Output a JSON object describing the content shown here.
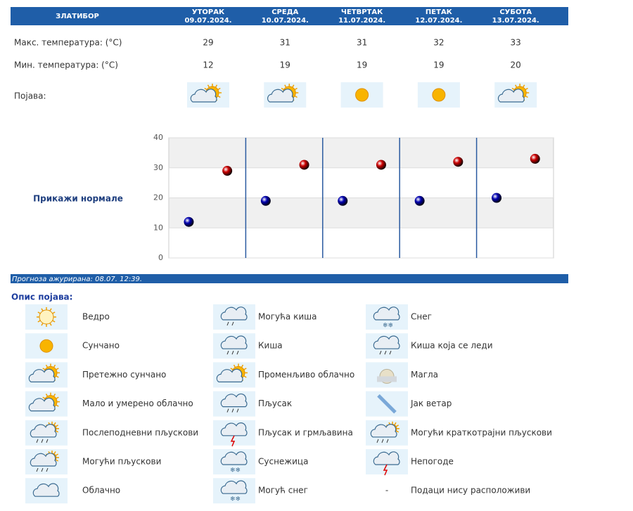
{
  "header": {
    "location": "ЗЛАТИБОР",
    "days": [
      {
        "name": "УТОРАК",
        "date": "09.07.2024."
      },
      {
        "name": "СРЕДА",
        "date": "10.07.2024."
      },
      {
        "name": "ЧЕТВРТАК",
        "date": "11.07.2024."
      },
      {
        "name": "ПЕТАК",
        "date": "12.07.2024."
      },
      {
        "name": "СУБОТА",
        "date": "13.07.2024."
      }
    ]
  },
  "table": {
    "phenomenon_label": "Појава:"
  },
  "chart_data": {
    "type": "scatter",
    "link": "Прикажи нормале",
    "ylim": [
      0,
      40
    ],
    "yticks": [
      0,
      10,
      20,
      30,
      40
    ],
    "series": [
      {
        "name": "Макс. температура: (°C)",
        "color": "#cc0000",
        "values": [
          29,
          31,
          31,
          32,
          33
        ]
      },
      {
        "name": "Мин. температура: (°C)",
        "color": "#0000b0",
        "values": [
          12,
          19,
          19,
          19,
          20
        ]
      }
    ]
  },
  "footer": {
    "updated": "Прогноза ажурирана:  08.07. 12:39."
  },
  "legend": {
    "title": "Опис појава:",
    "columns": [
      [
        {
          "label": "Ведро"
        },
        {
          "label": "Сунчано"
        },
        {
          "label": "Претежно сунчано"
        },
        {
          "label": "Мало и умерено облачно"
        },
        {
          "label": "Послеподневни пљускови"
        },
        {
          "label": "Могући пљускови"
        },
        {
          "label": "Облачно"
        }
      ],
      [
        {
          "label": "Могућа киша"
        },
        {
          "label": "Киша"
        },
        {
          "label": "Променљиво облачно"
        },
        {
          "label": "Пљусак"
        },
        {
          "label": "Пљусак и грмљавина"
        },
        {
          "label": "Суснежица"
        },
        {
          "label": "Могућ снег"
        }
      ],
      [
        {
          "label": "Снег"
        },
        {
          "label": "Киша која се леди"
        },
        {
          "label": "Магла"
        },
        {
          "label": "Јак ветар"
        },
        {
          "label": "Могући краткотрајни пљускови"
        },
        {
          "label": "Непогоде"
        },
        {
          "symbol": "-",
          "label": "Подаци нису расположиви"
        }
      ]
    ]
  }
}
